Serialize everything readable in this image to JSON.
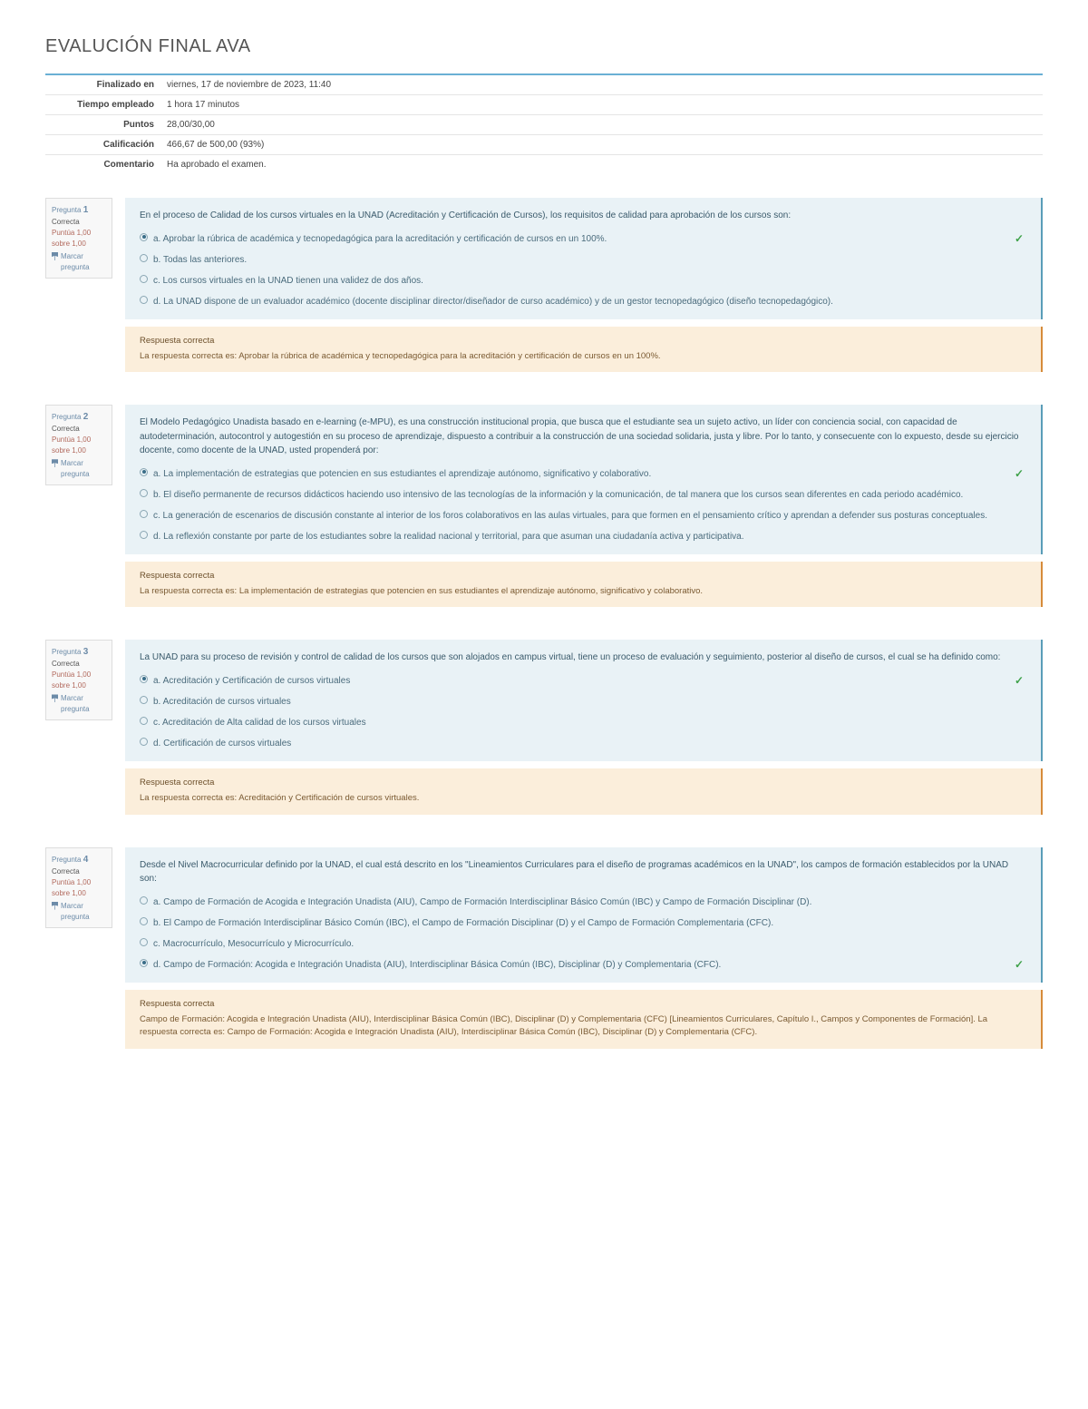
{
  "page": {
    "title": "EVALUCIÓN FINAL AVA"
  },
  "summary": {
    "rows": [
      {
        "label": "Finalizado en",
        "value": "viernes, 17 de noviembre de 2023, 11:40"
      },
      {
        "label": "Tiempo empleado",
        "value": "1 hora 17 minutos"
      },
      {
        "label": "Puntos",
        "value": "28,00/30,00"
      },
      {
        "label": "Calificación",
        "value": "466,67 de 500,00 (93%)"
      },
      {
        "label": "Comentario",
        "value": "Ha aprobado el examen."
      }
    ]
  },
  "info_labels": {
    "question_word": "Pregunta",
    "state": "Correcta",
    "score": "Puntúa 1,00 sobre 1,00",
    "mark": "Marcar pregunta"
  },
  "questions": [
    {
      "number": "1",
      "stem": "En el proceso de Calidad de los cursos virtuales en la UNAD (Acreditación y Certificación de Cursos), los requisitos de calidad para aprobación de los cursos son:",
      "options": [
        {
          "text": "a. Aprobar la rúbrica de académica y tecnopedagógica para la acreditación y certificación de cursos en un 100%.",
          "selected": true,
          "correct": true
        },
        {
          "text": "b. Todas las anteriores.",
          "selected": false,
          "correct": false
        },
        {
          "text": "c. Los cursos virtuales en la UNAD tienen una validez de dos años.",
          "selected": false,
          "correct": false
        },
        {
          "text": "d. La UNAD dispone de un evaluador académico (docente disciplinar director/diseñador de curso académico) y de un gestor tecnopedagógico (diseño tecnopedagógico).",
          "selected": false,
          "correct": false
        }
      ],
      "feedback_title": "Respuesta correcta",
      "feedback_text": "La respuesta correcta es: Aprobar la rúbrica de académica y tecnopedagógica para la acreditación y certificación de cursos en un 100%."
    },
    {
      "number": "2",
      "stem": "El Modelo Pedagógico Unadista basado en e-learning (e-MPU), es una construcción institucional propia, que busca que el estudiante sea un sujeto activo, un líder con conciencia social, con capacidad de autodeterminación, autocontrol y autogestión en su proceso de aprendizaje, dispuesto a contribuir a la construcción de una sociedad solidaria, justa y libre. Por lo tanto, y consecuente con lo expuesto, desde su ejercicio docente, como docente de la UNAD, usted propenderá por:",
      "options": [
        {
          "text": "a. La implementación de estrategias que potencien en sus estudiantes el aprendizaje autónomo, significativo y colaborativo.",
          "selected": true,
          "correct": true
        },
        {
          "text": "b. El diseño permanente de recursos didácticos haciendo uso intensivo de las tecnologías de la información y la comunicación, de tal manera que los cursos sean diferentes en cada periodo académico.",
          "selected": false,
          "correct": false
        },
        {
          "text": "c. La generación de escenarios de discusión constante al interior de los foros colaborativos en las aulas virtuales, para que formen en el pensamiento crítico y aprendan a defender sus posturas conceptuales.",
          "selected": false,
          "correct": false
        },
        {
          "text": "d. La reflexión constante por parte de los estudiantes sobre la realidad nacional y territorial, para que asuman una ciudadanía activa y participativa.",
          "selected": false,
          "correct": false
        }
      ],
      "feedback_title": "Respuesta correcta",
      "feedback_text": "La respuesta correcta es: La implementación de estrategias que potencien en sus estudiantes el aprendizaje autónomo, significativo y colaborativo."
    },
    {
      "number": "3",
      "stem": "La UNAD para su proceso de revisión y control de calidad de los cursos que son alojados en campus virtual, tiene un proceso de evaluación y seguimiento, posterior al diseño de cursos, el cual se ha definido como:",
      "options": [
        {
          "text": "a. Acreditación y Certificación de cursos virtuales",
          "selected": true,
          "correct": true
        },
        {
          "text": "b. Acreditación de cursos virtuales",
          "selected": false,
          "correct": false
        },
        {
          "text": "c. Acreditación de Alta calidad de los cursos virtuales",
          "selected": false,
          "correct": false
        },
        {
          "text": "d. Certificación de cursos virtuales",
          "selected": false,
          "correct": false
        }
      ],
      "feedback_title": "Respuesta correcta",
      "feedback_text": "La respuesta correcta es: Acreditación y Certificación de cursos virtuales."
    },
    {
      "number": "4",
      "stem": "Desde el Nivel Macrocurricular definido por la UNAD, el cual está descrito en los \"Lineamientos Curriculares para el diseño de programas académicos en la UNAD\", los campos de formación establecidos por la UNAD son:",
      "options": [
        {
          "text": "a. Campo de Formación de Acogida e Integración Unadista (AIU), Campo de Formación Interdisciplinar Básico Común (IBC) y Campo de Formación Disciplinar (D).",
          "selected": false,
          "correct": false
        },
        {
          "text": "b. El Campo de Formación Interdisciplinar Básico Común (IBC), el Campo de Formación Disciplinar (D) y el Campo de Formación Complementaria (CFC).",
          "selected": false,
          "correct": false
        },
        {
          "text": "c. Macrocurrículo, Mesocurrículo y Microcurrículo.",
          "selected": false,
          "correct": false
        },
        {
          "text": "d. Campo de Formación: Acogida e Integración Unadista (AIU), Interdisciplinar Básica Común (IBC), Disciplinar (D) y Complementaria (CFC).",
          "selected": true,
          "correct": true
        }
      ],
      "feedback_title": "Respuesta correcta",
      "feedback_text": "Campo de Formación: Acogida e Integración Unadista (AIU), Interdisciplinar Básica Común (IBC), Disciplinar (D) y Complementaria (CFC) [Lineamientos Curriculares, Capítulo I., Campos y Componentes de Formación].\nLa respuesta correcta es:\nCampo de Formación: Acogida e Integración Unadista (AIU), Interdisciplinar Básica Común (IBC), Disciplinar (D) y Complementaria (CFC)."
    }
  ]
}
